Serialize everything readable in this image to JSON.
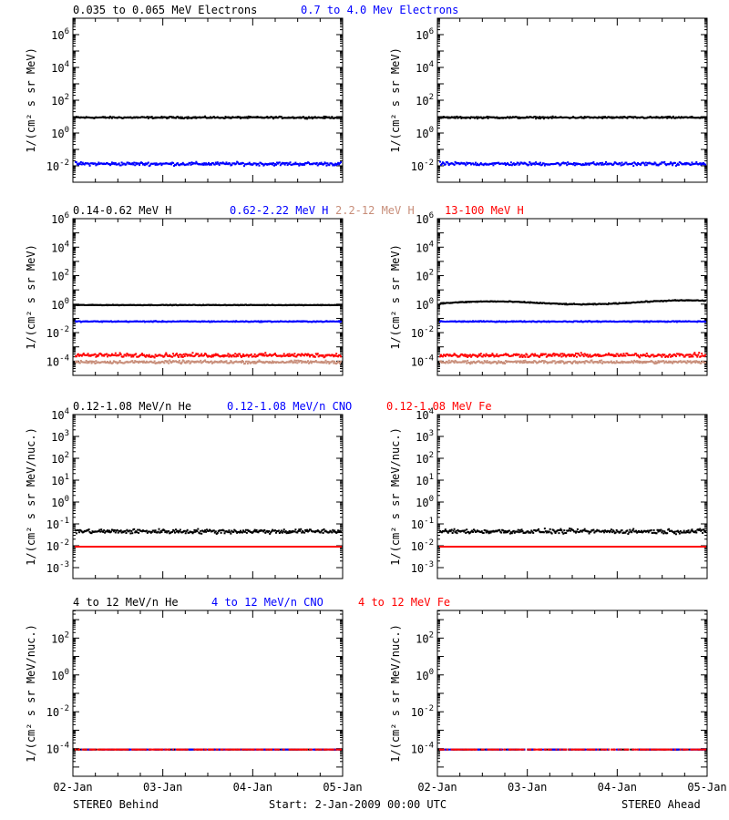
{
  "colors": {
    "black": "#000000",
    "blue": "#0000ff",
    "salmon": "#c88e7a",
    "red": "#ff0000"
  },
  "footer": {
    "left": "STEREO Behind",
    "center": "Start:  2-Jan-2009 00:00 UTC",
    "right": "STEREO Ahead"
  },
  "time_ticks": [
    "02-Jan",
    "03-Jan",
    "04-Jan",
    "05-Jan"
  ],
  "rows": [
    {
      "legend": [
        {
          "text": "0.035 to 0.065 MeV Electrons",
          "color": "#000000"
        },
        {
          "text": "0.7 to 4.0 Mev Electrons",
          "color": "#0000ff"
        }
      ]
    },
    {
      "legend": [
        {
          "text": "0.14-0.62 MeV H",
          "color": "#000000"
        },
        {
          "text": "0.62-2.22 MeV H",
          "color": "#0000ff"
        },
        {
          "text": "2.2-12 MeV H",
          "color": "#c88e7a"
        },
        {
          "text": "13-100 MeV H",
          "color": "#ff0000"
        }
      ]
    },
    {
      "legend": [
        {
          "text": "0.12-1.08 MeV/n He",
          "color": "#000000"
        },
        {
          "text": "0.12-1.08 MeV/n CNO",
          "color": "#0000ff"
        },
        {
          "text": "0.12-1.08 MeV Fe",
          "color": "#ff0000"
        }
      ]
    },
    {
      "legend": [
        {
          "text": "4 to 12 MeV/n He",
          "color": "#000000"
        },
        {
          "text": "4 to 12 MeV/n CNO",
          "color": "#0000ff"
        },
        {
          "text": "4 to 12 MeV Fe",
          "color": "#ff0000"
        }
      ]
    }
  ],
  "chart_data": [
    {
      "type": "scatter",
      "panel": "top-left",
      "log_y": true,
      "ylim_exp": [
        -3,
        7
      ],
      "ylabel": "1/(cm² s sr MeV)",
      "ytick_exps": [
        -2,
        0,
        2,
        4,
        6
      ],
      "xlim": [
        "02-Jan",
        "05-Jan"
      ],
      "series": [
        {
          "name": "0.035 to 0.065 MeV Electrons",
          "color": "#000000",
          "level": 10,
          "scatter": 0.08
        },
        {
          "name": "0.7 to 4.0 Mev Electrons",
          "color": "#0000ff",
          "level": 0.015,
          "scatter": 0.15
        }
      ]
    },
    {
      "type": "scatter",
      "panel": "top-right",
      "log_y": true,
      "ylim_exp": [
        -3,
        7
      ],
      "ylabel": "1/(cm² s sr MeV)",
      "ytick_exps": [
        -2,
        0,
        2,
        4,
        6
      ],
      "xlim": [
        "02-Jan",
        "05-Jan"
      ],
      "series": [
        {
          "name": "0.035 to 0.065 MeV Electrons",
          "color": "#000000",
          "level": 10,
          "scatter": 0.08
        },
        {
          "name": "0.7 to 4.0 Mev Electrons",
          "color": "#0000ff",
          "level": 0.015,
          "scatter": 0.15
        }
      ]
    },
    {
      "type": "scatter",
      "panel": "second-left",
      "log_y": true,
      "ylim_exp": [
        -5,
        6
      ],
      "ylabel": "1/(cm² s sr MeV)",
      "ytick_exps": [
        -4,
        -2,
        0,
        2,
        4,
        6
      ],
      "xlim": [
        "02-Jan",
        "05-Jan"
      ],
      "series": [
        {
          "name": "0.14-0.62 MeV H",
          "color": "#000000",
          "level": 1,
          "scatter": 0.03
        },
        {
          "name": "0.62-2.22 MeV H",
          "color": "#0000ff",
          "level": 0.07,
          "scatter": 0.05
        },
        {
          "name": "2.2-12 MeV H",
          "color": "#c88e7a",
          "level": 0.0001,
          "scatter": 0.15
        },
        {
          "name": "13-100 MeV H",
          "color": "#ff0000",
          "level": 0.0003,
          "scatter": 0.2
        }
      ]
    },
    {
      "type": "scatter",
      "panel": "second-right",
      "log_y": true,
      "ylim_exp": [
        -5,
        6
      ],
      "ylabel": "1/(cm² s sr MeV)",
      "ytick_exps": [
        -4,
        -2,
        0,
        2,
        4,
        6
      ],
      "xlim": [
        "02-Jan",
        "05-Jan"
      ],
      "series": [
        {
          "name": "0.14-0.62 MeV H",
          "color": "#000000",
          "level": 1.3,
          "scatter": 0.05
        },
        {
          "name": "0.62-2.22 MeV H",
          "color": "#0000ff",
          "level": 0.07,
          "scatter": 0.05
        },
        {
          "name": "2.2-12 MeV H",
          "color": "#c88e7a",
          "level": 0.0001,
          "scatter": 0.15
        },
        {
          "name": "13-100 MeV H",
          "color": "#ff0000",
          "level": 0.0003,
          "scatter": 0.2
        }
      ]
    },
    {
      "type": "scatter",
      "panel": "third-left",
      "log_y": true,
      "ylim_exp": [
        -3.5,
        4
      ],
      "ylabel": "1/(cm² s sr MeV/nuc.)",
      "ytick_exps": [
        -3,
        -2,
        -1,
        0,
        1,
        2,
        3,
        4
      ],
      "xlim": [
        "02-Jan",
        "05-Jan"
      ],
      "series": [
        {
          "name": "0.12-1.08 MeV/n He",
          "color": "#000000",
          "level": 0.05,
          "scatter": 0.15
        },
        {
          "name": "0.12-1.08 MeV/n CNO",
          "color": "#0000ff",
          "level": 0.01,
          "scatter": 0
        },
        {
          "name": "0.12-1.08 MeV Fe",
          "color": "#ff0000",
          "level": 0.01,
          "scatter": 0
        }
      ]
    },
    {
      "type": "scatter",
      "panel": "third-right",
      "log_y": true,
      "ylim_exp": [
        -3.5,
        4
      ],
      "ylabel": "1/(cm² s sr MeV/nuc.)",
      "ytick_exps": [
        -3,
        -2,
        -1,
        0,
        1,
        2,
        3,
        4
      ],
      "xlim": [
        "02-Jan",
        "05-Jan"
      ],
      "series": [
        {
          "name": "0.12-1.08 MeV/n He",
          "color": "#000000",
          "level": 0.05,
          "scatter": 0.15
        },
        {
          "name": "0.12-1.08 MeV/n CNO",
          "color": "#0000ff",
          "level": 0.01,
          "scatter": 0
        },
        {
          "name": "0.12-1.08 MeV Fe",
          "color": "#ff0000",
          "level": 0.01,
          "scatter": 0
        }
      ]
    },
    {
      "type": "scatter",
      "panel": "bottom-left",
      "log_y": true,
      "ylim_exp": [
        -5.5,
        3.5
      ],
      "ylabel": "1/(cm² s sr MeV/nuc.)",
      "ytick_exps": [
        -4,
        -2,
        0,
        2
      ],
      "xlim": [
        "02-Jan",
        "05-Jan"
      ],
      "series": [
        {
          "name": "4 to 12 MeV/n He",
          "color": "#000000",
          "level": 0.0001,
          "scatter": 0
        },
        {
          "name": "4 to 12 MeV/n CNO",
          "color": "#0000ff",
          "level": 0.0001,
          "scatter": 0
        },
        {
          "name": "4 to 12 MeV Fe",
          "color": "#ff0000",
          "level": 0.0001,
          "scatter": 0
        }
      ]
    },
    {
      "type": "scatter",
      "panel": "bottom-right",
      "log_y": true,
      "ylim_exp": [
        -5.5,
        3.5
      ],
      "ylabel": "1/(cm² s sr MeV/nuc.)",
      "ytick_exps": [
        -4,
        -2,
        0,
        2
      ],
      "xlim": [
        "02-Jan",
        "05-Jan"
      ],
      "series": [
        {
          "name": "4 to 12 MeV/n He",
          "color": "#000000",
          "level": 0.0001,
          "scatter": 0
        },
        {
          "name": "4 to 12 MeV/n CNO",
          "color": "#0000ff",
          "level": 0.0001,
          "scatter": 0
        },
        {
          "name": "4 to 12 MeV Fe",
          "color": "#ff0000",
          "level": 0.0001,
          "scatter": 0
        }
      ]
    }
  ]
}
